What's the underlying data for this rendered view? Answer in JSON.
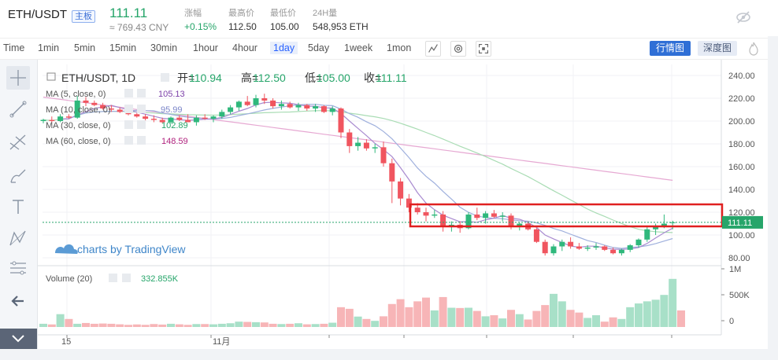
{
  "header": {
    "symbol": "ETH/USDT",
    "badge": "主板",
    "price": "111.11",
    "cny": "≈ 769.43 CNY",
    "stats": [
      {
        "label": "涨幅",
        "value": "+0.15%",
        "color": "#26a56a"
      },
      {
        "label": "最高价",
        "value": "112.50",
        "color": "#333333"
      },
      {
        "label": "最低价",
        "value": "105.00",
        "color": "#333333"
      },
      {
        "label": "24H量",
        "value": "548,953 ETH",
        "color": "#333333"
      }
    ]
  },
  "toolbar": {
    "timeframes": [
      "Time",
      "1min",
      "5min",
      "15min",
      "30min",
      "1hour",
      "4hour",
      "1day",
      "5day",
      "1week",
      "1mon"
    ],
    "active": "1day",
    "kline_button": "行情图",
    "depth_button": "深度图"
  },
  "legend": {
    "title": "ETH/USDT, 1D",
    "open_label": "开=",
    "open": "110.94",
    "high_label": "高=",
    "high": "112.50",
    "low_label": "低=",
    "low": "105.00",
    "close_label": "收=",
    "close": "111.11",
    "ma": [
      {
        "label": "MA (5, close, 0)",
        "value": "105.13",
        "color": "#7b3fa8"
      },
      {
        "label": "MA (10, close, 0)",
        "value": "95.99",
        "color": "#7c86c9"
      },
      {
        "label": "MA (30, close, 0)",
        "value": "102.89",
        "color": "#26a56a"
      },
      {
        "label": "MA (60, close, 0)",
        "value": "148.59",
        "color": "#b0227e"
      }
    ],
    "watermark": "charts by TradingView"
  },
  "volume": {
    "label": "Volume (20)",
    "value": "332.855K",
    "axis": [
      "1M",
      "500K",
      "0"
    ]
  },
  "chart_data": {
    "type": "candlestick",
    "ylim": [
      75,
      245
    ],
    "y_ticks": [
      240,
      220,
      200,
      180,
      160,
      140,
      120,
      100,
      80
    ],
    "last_price": "111.11",
    "x_labels": [
      "15",
      "11月"
    ],
    "colors": {
      "up": "#2fb87c",
      "down": "#f0555f",
      "vol_up": "#a8e0c8",
      "vol_down": "#f7b5b7",
      "ma5": "#a98bd0",
      "ma10": "#9fb0dd",
      "ma30": "#a9dcb4",
      "ma60": "#e6a8d2",
      "highlight": "#e02020"
    },
    "candles": [
      {
        "o": 200,
        "h": 202,
        "l": 198,
        "c": 201
      },
      {
        "o": 201,
        "h": 204,
        "l": 199,
        "c": 200
      },
      {
        "o": 200,
        "h": 206,
        "l": 199,
        "c": 204
      },
      {
        "o": 204,
        "h": 206,
        "l": 202,
        "c": 203
      },
      {
        "o": 203,
        "h": 222,
        "l": 202,
        "c": 218
      },
      {
        "o": 218,
        "h": 221,
        "l": 213,
        "c": 216
      },
      {
        "o": 216,
        "h": 218,
        "l": 213,
        "c": 214
      },
      {
        "o": 214,
        "h": 216,
        "l": 210,
        "c": 211
      },
      {
        "o": 211,
        "h": 214,
        "l": 208,
        "c": 210
      },
      {
        "o": 210,
        "h": 212,
        "l": 207,
        "c": 208
      },
      {
        "o": 208,
        "h": 210,
        "l": 205,
        "c": 206
      },
      {
        "o": 206,
        "h": 207,
        "l": 203,
        "c": 204
      },
      {
        "o": 204,
        "h": 206,
        "l": 200,
        "c": 202
      },
      {
        "o": 202,
        "h": 205,
        "l": 199,
        "c": 201
      },
      {
        "o": 201,
        "h": 203,
        "l": 198,
        "c": 199
      },
      {
        "o": 199,
        "h": 204,
        "l": 198,
        "c": 203
      },
      {
        "o": 203,
        "h": 205,
        "l": 200,
        "c": 201
      },
      {
        "o": 201,
        "h": 206,
        "l": 199,
        "c": 199
      },
      {
        "o": 199,
        "h": 205,
        "l": 196,
        "c": 203
      },
      {
        "o": 203,
        "h": 206,
        "l": 201,
        "c": 202
      },
      {
        "o": 202,
        "h": 205,
        "l": 199,
        "c": 204
      },
      {
        "o": 204,
        "h": 210,
        "l": 202,
        "c": 208
      },
      {
        "o": 208,
        "h": 214,
        "l": 206,
        "c": 212
      },
      {
        "o": 212,
        "h": 218,
        "l": 209,
        "c": 217
      },
      {
        "o": 217,
        "h": 222,
        "l": 213,
        "c": 214
      },
      {
        "o": 214,
        "h": 223,
        "l": 212,
        "c": 220
      },
      {
        "o": 220,
        "h": 224,
        "l": 215,
        "c": 218
      },
      {
        "o": 218,
        "h": 220,
        "l": 211,
        "c": 213
      },
      {
        "o": 213,
        "h": 218,
        "l": 210,
        "c": 215
      },
      {
        "o": 215,
        "h": 217,
        "l": 211,
        "c": 212
      },
      {
        "o": 212,
        "h": 216,
        "l": 209,
        "c": 214
      },
      {
        "o": 214,
        "h": 215,
        "l": 209,
        "c": 211
      },
      {
        "o": 211,
        "h": 215,
        "l": 208,
        "c": 213
      },
      {
        "o": 213,
        "h": 214,
        "l": 207,
        "c": 208
      },
      {
        "o": 208,
        "h": 213,
        "l": 205,
        "c": 211
      },
      {
        "o": 211,
        "h": 212,
        "l": 185,
        "c": 190
      },
      {
        "o": 190,
        "h": 193,
        "l": 172,
        "c": 178
      },
      {
        "o": 178,
        "h": 186,
        "l": 174,
        "c": 181
      },
      {
        "o": 181,
        "h": 184,
        "l": 174,
        "c": 176
      },
      {
        "o": 176,
        "h": 180,
        "l": 172,
        "c": 177
      },
      {
        "o": 177,
        "h": 182,
        "l": 160,
        "c": 163
      },
      {
        "o": 163,
        "h": 167,
        "l": 128,
        "c": 147
      },
      {
        "o": 147,
        "h": 150,
        "l": 126,
        "c": 132
      },
      {
        "o": 132,
        "h": 136,
        "l": 120,
        "c": 124
      },
      {
        "o": 124,
        "h": 128,
        "l": 118,
        "c": 120
      },
      {
        "o": 120,
        "h": 124,
        "l": 112,
        "c": 117
      },
      {
        "o": 117,
        "h": 122,
        "l": 115,
        "c": 118
      },
      {
        "o": 118,
        "h": 121,
        "l": 103,
        "c": 108
      },
      {
        "o": 108,
        "h": 112,
        "l": 103,
        "c": 109
      },
      {
        "o": 109,
        "h": 112,
        "l": 102,
        "c": 106
      },
      {
        "o": 106,
        "h": 120,
        "l": 105,
        "c": 118
      },
      {
        "o": 118,
        "h": 124,
        "l": 113,
        "c": 115
      },
      {
        "o": 115,
        "h": 121,
        "l": 110,
        "c": 119
      },
      {
        "o": 119,
        "h": 122,
        "l": 115,
        "c": 116
      },
      {
        "o": 116,
        "h": 120,
        "l": 112,
        "c": 117
      },
      {
        "o": 117,
        "h": 119,
        "l": 105,
        "c": 107
      },
      {
        "o": 107,
        "h": 111,
        "l": 104,
        "c": 110
      },
      {
        "o": 110,
        "h": 112,
        "l": 104,
        "c": 105
      },
      {
        "o": 105,
        "h": 106,
        "l": 93,
        "c": 94
      },
      {
        "o": 94,
        "h": 96,
        "l": 82,
        "c": 84
      },
      {
        "o": 84,
        "h": 92,
        "l": 82,
        "c": 90
      },
      {
        "o": 90,
        "h": 96,
        "l": 86,
        "c": 94
      },
      {
        "o": 94,
        "h": 98,
        "l": 88,
        "c": 90
      },
      {
        "o": 90,
        "h": 93,
        "l": 87,
        "c": 88
      },
      {
        "o": 88,
        "h": 91,
        "l": 86,
        "c": 89
      },
      {
        "o": 89,
        "h": 93,
        "l": 87,
        "c": 90
      },
      {
        "o": 90,
        "h": 91,
        "l": 86,
        "c": 87
      },
      {
        "o": 87,
        "h": 89,
        "l": 83,
        "c": 84
      },
      {
        "o": 84,
        "h": 88,
        "l": 82,
        "c": 87
      },
      {
        "o": 87,
        "h": 92,
        "l": 85,
        "c": 91
      },
      {
        "o": 91,
        "h": 97,
        "l": 89,
        "c": 96
      },
      {
        "o": 96,
        "h": 107,
        "l": 94,
        "c": 105
      },
      {
        "o": 105,
        "h": 110,
        "l": 100,
        "c": 108
      },
      {
        "o": 108,
        "h": 118,
        "l": 106,
        "c": 110
      },
      {
        "o": 111,
        "h": 112.5,
        "l": 105,
        "c": 111.11
      }
    ],
    "volumes": [
      60,
      48,
      240,
      150,
      60,
      75,
      60,
      65,
      60,
      50,
      40,
      48,
      40,
      55,
      45,
      60,
      50,
      40,
      55,
      55,
      50,
      60,
      70,
      100,
      95,
      90,
      85,
      60,
      55,
      60,
      70,
      50,
      55,
      60,
      80,
      370,
      340,
      195,
      150,
      115,
      200,
      430,
      520,
      370,
      480,
      550,
      310,
      560,
      360,
      355,
      360,
      300,
      200,
      220,
      160,
      320,
      240,
      140,
      300,
      410,
      620,
      480,
      320,
      270,
      170,
      220,
      100,
      180,
      150,
      370,
      440,
      480,
      510,
      600,
      900,
      310
    ]
  }
}
